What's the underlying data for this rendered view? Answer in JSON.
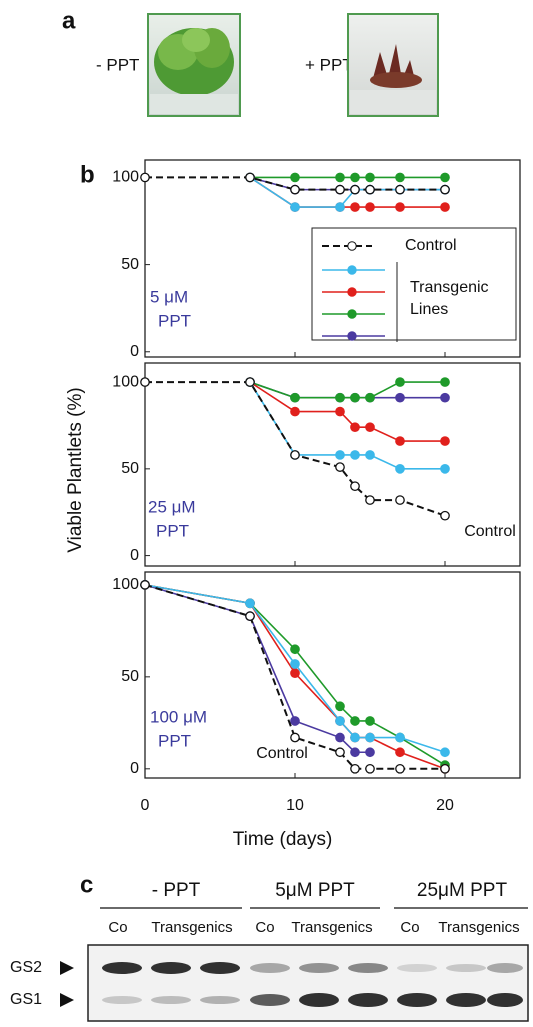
{
  "panel_labels": [
    "a",
    "b",
    "c"
  ],
  "photos": [
    "- PPT",
    "+ PPT"
  ],
  "ylabel": "Viable Plantlets (%)",
  "chart_data": [
    {
      "type": "line",
      "annotation": [
        "5 μM",
        "PPT"
      ],
      "x": [
        0,
        7,
        10,
        13,
        14,
        15,
        17,
        20
      ],
      "xlim": [
        0,
        25
      ],
      "xticks": [
        0,
        10,
        20
      ],
      "ylim": [
        -3,
        110
      ],
      "yticks": [
        0,
        50,
        100
      ],
      "legend_group": [
        "Transgenic",
        "Lines"
      ],
      "series": [
        {
          "name": "Control",
          "color": "#111111",
          "dashed": true,
          "values": [
            100,
            100,
            93,
            93,
            93,
            93,
            93,
            93
          ]
        },
        {
          "color": "#3bb8ea",
          "values": [
            null,
            100,
            83,
            83,
            93,
            93,
            93,
            93
          ]
        },
        {
          "color": "#e0201c",
          "values": [
            null,
            100,
            83,
            83,
            83,
            83,
            83,
            83
          ]
        },
        {
          "color": "#1f9a2a",
          "values": [
            null,
            100,
            100,
            100,
            100,
            100,
            100,
            100
          ]
        },
        {
          "color": "#4b3aa0",
          "values": [
            null,
            100,
            93,
            93,
            93,
            93,
            93,
            93
          ]
        }
      ]
    },
    {
      "type": "line",
      "annotation": [
        "25 μM",
        "PPT"
      ],
      "x": [
        0,
        7,
        10,
        13,
        14,
        15,
        17,
        20
      ],
      "xlim": [
        0,
        25
      ],
      "xticks": [
        0,
        10,
        20
      ],
      "ylim": [
        -6,
        111
      ],
      "yticks": [
        0,
        50,
        100
      ],
      "series": [
        {
          "name": "Control",
          "color": "#111111",
          "dashed": true,
          "values": [
            100,
            100,
            58,
            51,
            40,
            32,
            32,
            23
          ]
        },
        {
          "color": "#3bb8ea",
          "values": [
            null,
            100,
            58,
            58,
            58,
            58,
            50,
            50
          ]
        },
        {
          "color": "#e0201c",
          "values": [
            null,
            100,
            83,
            83,
            74,
            74,
            66,
            66
          ]
        },
        {
          "color": "#1f9a2a",
          "values": [
            null,
            100,
            91,
            91,
            91,
            91,
            100,
            100
          ]
        },
        {
          "color": "#4b3aa0",
          "values": [
            null,
            100,
            91,
            91,
            91,
            91,
            91,
            91
          ]
        }
      ]
    },
    {
      "type": "line",
      "annotation": [
        "100 μM",
        "PPT"
      ],
      "xlabel": "Time (days)",
      "x": [
        0,
        7,
        10,
        13,
        14,
        15,
        17,
        20
      ],
      "xlim": [
        0,
        25
      ],
      "xticks": [
        0,
        10,
        20
      ],
      "ylim": [
        -5,
        107
      ],
      "yticks": [
        0,
        50,
        100
      ],
      "series": [
        {
          "name": "Control",
          "color": "#111111",
          "dashed": true,
          "values": [
            100,
            83,
            17,
            9,
            0,
            0,
            0,
            0
          ]
        },
        {
          "color": "#3bb8ea",
          "values": [
            100,
            90,
            57,
            26,
            17,
            17,
            17,
            9
          ]
        },
        {
          "color": "#e0201c",
          "values": [
            100,
            90,
            52,
            26,
            17,
            17,
            9,
            0
          ]
        },
        {
          "color": "#1f9a2a",
          "values": [
            100,
            90,
            65,
            34,
            26,
            26,
            17,
            2
          ]
        },
        {
          "color": "#4b3aa0",
          "values": [
            100,
            83,
            26,
            17,
            9,
            9,
            null,
            null
          ]
        }
      ]
    }
  ],
  "blot": {
    "groups": [
      "- PPT",
      "5μM PPT",
      "25μM PPT"
    ],
    "lanes": [
      "Co",
      "Transgenics",
      "Co",
      "Transgenics",
      "Co",
      "Transgenics"
    ],
    "bands": [
      "GS2",
      "GS1"
    ]
  }
}
